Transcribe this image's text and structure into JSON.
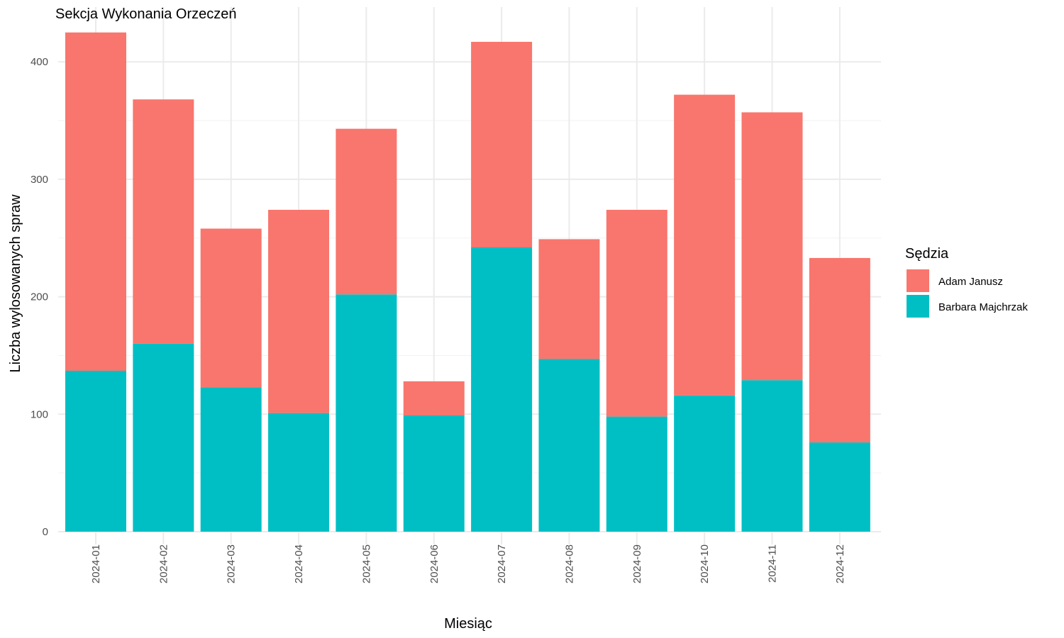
{
  "chart_data": {
    "type": "bar",
    "stacked": true,
    "title": "Sekcja Wykonania Orzeczeń",
    "xlabel": "Miesiąc",
    "ylabel": "Liczba wylosowanych spraw",
    "ylim": [
      0,
      430
    ],
    "yticks": [
      0,
      100,
      200,
      300,
      400
    ],
    "grid": true,
    "legend": {
      "title": "Sędzia",
      "position": "right"
    },
    "categories": [
      "2024-01",
      "2024-02",
      "2024-03",
      "2024-04",
      "2024-05",
      "2024-06",
      "2024-07",
      "2024-08",
      "2024-09",
      "2024-10",
      "2024-11",
      "2024-12"
    ],
    "series": [
      {
        "name": "Barbara Majchrzak",
        "color": "#00BFC4",
        "values": [
          137,
          160,
          123,
          101,
          202,
          99,
          242,
          147,
          98,
          116,
          129,
          76
        ]
      },
      {
        "name": "Adam Janusz",
        "color": "#F8766D",
        "values": [
          288,
          208,
          135,
          173,
          141,
          29,
          175,
          102,
          176,
          256,
          228,
          157
        ]
      }
    ],
    "legend_order": [
      "Adam Janusz",
      "Barbara Majchrzak"
    ]
  }
}
